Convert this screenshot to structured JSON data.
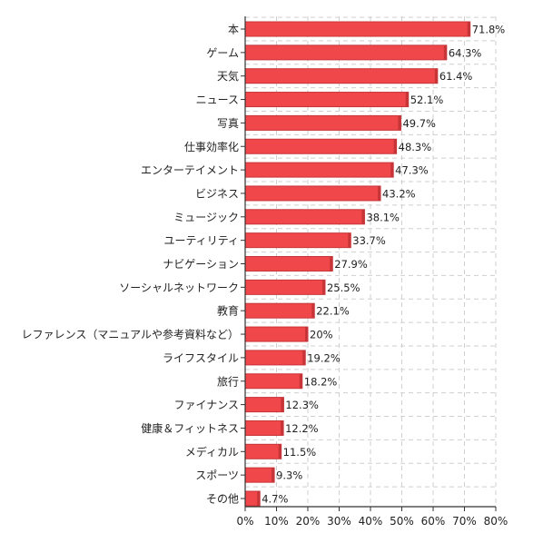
{
  "chart_data": {
    "type": "bar",
    "orientation": "horizontal",
    "categories": [
      "本",
      "ゲーム",
      "天気",
      "ニュース",
      "写真",
      "仕事効率化",
      "エンターテイメント",
      "ビジネス",
      "ミュージック",
      "ユーティリティ",
      "ナビゲーション",
      "ソーシャルネットワーク",
      "教育",
      "レファレンス（マニュアルや参考資料など）",
      "ライフスタイル",
      "旅行",
      "ファイナンス",
      "健康＆フィットネス",
      "メディカル",
      "スポーツ",
      "その他"
    ],
    "values": [
      71.8,
      64.3,
      61.4,
      52.1,
      49.7,
      48.3,
      47.3,
      43.2,
      38.1,
      33.7,
      27.9,
      25.5,
      22.1,
      20,
      19.2,
      18.2,
      12.3,
      12.2,
      11.5,
      9.3,
      4.7
    ],
    "value_labels": [
      "71.8%",
      "64.3%",
      "61.4%",
      "52.1%",
      "49.7%",
      "48.3%",
      "47.3%",
      "43.2%",
      "38.1%",
      "33.7%",
      "27.9%",
      "25.5%",
      "22.1%",
      "20%",
      "19.2%",
      "18.2%",
      "12.3%",
      "12.2%",
      "11.5%",
      "9.3%",
      "4.7%"
    ],
    "x_ticks": [
      "0%",
      "10%",
      "20%",
      "30%",
      "40%",
      "50%",
      "60%",
      "70%",
      "80%"
    ],
    "xlim": [
      0,
      80
    ],
    "title": "",
    "xlabel": "",
    "ylabel": "",
    "grid": true,
    "legend": "none",
    "bar_color": "#f0474a",
    "bar_edge_color": "#c73538"
  }
}
